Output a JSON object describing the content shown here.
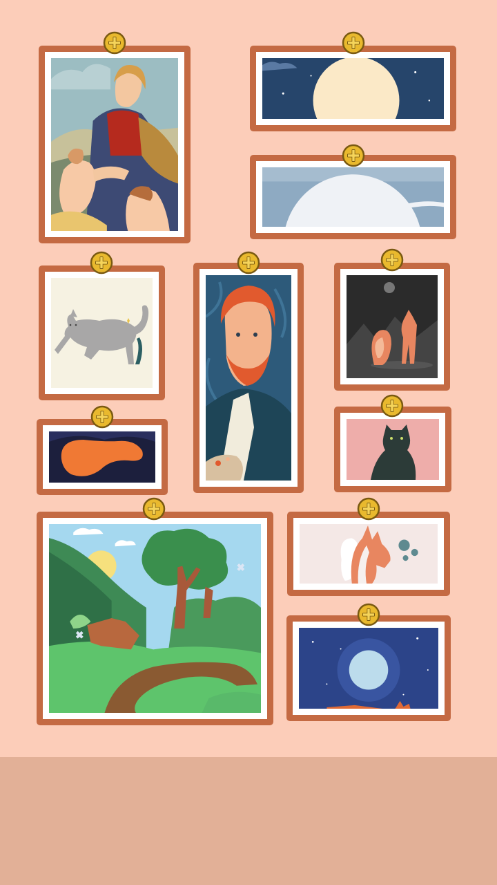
{
  "theme": {
    "wall_color": "#fccdb9",
    "floor_color": "#e2b097",
    "frame_color": "#c46a43",
    "mat_color": "#ffffff",
    "pin_color": "#e9b92e",
    "pin_outline": "#7a5a12"
  },
  "gallery": {
    "frames": [
      {
        "id": "madonna",
        "art": "madonna-painting",
        "pin_icon": "plus-pin-icon"
      },
      {
        "id": "moon",
        "art": "moon-night-painting",
        "pin_icon": "plus-pin-icon"
      },
      {
        "id": "planet",
        "art": "planet-horizon-painting",
        "pin_icon": "plus-pin-icon"
      },
      {
        "id": "gray-cat",
        "art": "gray-cat-painting",
        "pin_icon": "plus-pin-icon"
      },
      {
        "id": "van-gogh",
        "art": "van-gogh-portrait-painting",
        "pin_icon": "plus-pin-icon"
      },
      {
        "id": "fox-night",
        "art": "fox-night-painting",
        "pin_icon": "plus-pin-icon"
      },
      {
        "id": "orange-blob",
        "art": "orange-blob-painting",
        "pin_icon": "plus-pin-icon"
      },
      {
        "id": "black-cat",
        "art": "black-cat-painting",
        "pin_icon": "plus-pin-icon"
      },
      {
        "id": "forest",
        "art": "forest-path-painting",
        "pin_icon": "plus-pin-icon"
      },
      {
        "id": "fox-minimal",
        "art": "fox-minimal-painting",
        "pin_icon": "plus-pin-icon"
      },
      {
        "id": "full-moon",
        "art": "full-moon-painting",
        "pin_icon": "plus-pin-icon"
      }
    ]
  }
}
